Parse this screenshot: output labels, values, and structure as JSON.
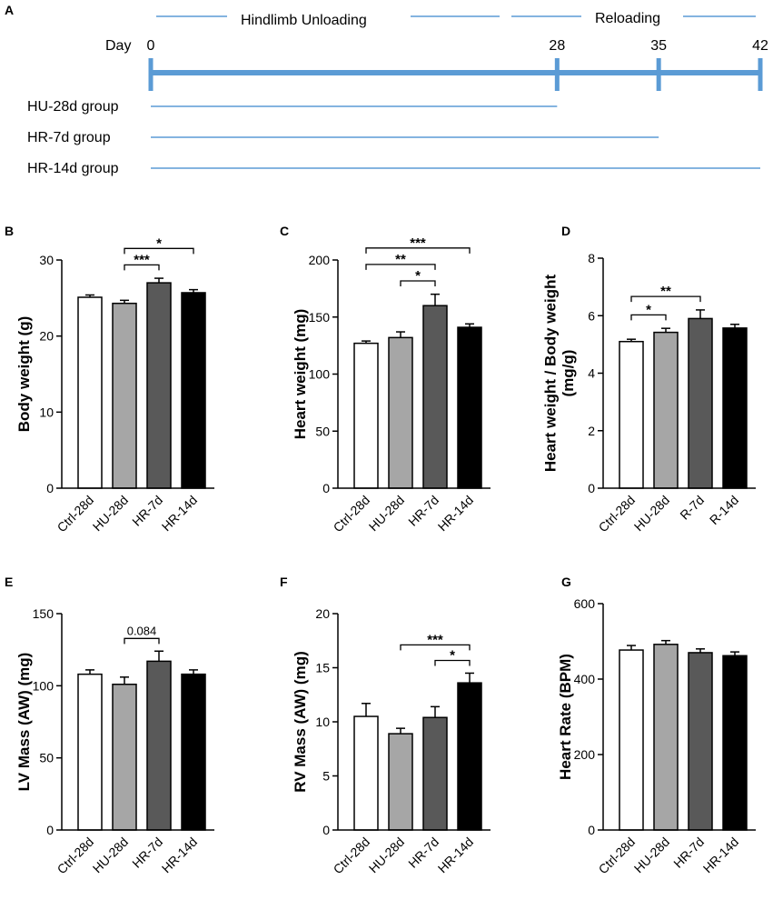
{
  "timeline": {
    "panel": "A",
    "day_label": "Day",
    "phase_unloading": "Hindlimb  Unloading",
    "phase_reloading": "Reloading",
    "days": [
      "0",
      "28",
      "35",
      "42"
    ],
    "groups": [
      {
        "name": "HU-28d group",
        "end_day": 28
      },
      {
        "name": "HR-7d group",
        "end_day": 35
      },
      {
        "name": "HR-14d group",
        "end_day": 42
      }
    ],
    "line_color": "#5b9bd5"
  },
  "colors": {
    "ctrl": "#ffffff",
    "hu": "#a6a6a6",
    "hr7": "#595959",
    "hr14": "#000000"
  },
  "chart_data": [
    {
      "panel": "B",
      "type": "bar",
      "ylabel": "Body weight (g)",
      "categories": [
        "Ctrl-28d",
        "HU-28d",
        "HR-7d",
        "HR-14d"
      ],
      "values": [
        25.1,
        24.3,
        27.0,
        25.7
      ],
      "errors": [
        0.3,
        0.4,
        0.6,
        0.4
      ],
      "ylim": [
        0,
        30
      ],
      "yticks": [
        "0",
        "10",
        "20",
        "30"
      ],
      "annotations": [
        {
          "from": 1,
          "to": 3,
          "label": "*"
        },
        {
          "from": 1,
          "to": 2,
          "label": "***"
        }
      ]
    },
    {
      "panel": "C",
      "type": "bar",
      "ylabel": "Heart weight (mg)",
      "categories": [
        "Ctrl-28d",
        "HU-28d",
        "HR-7d",
        "HR-14d"
      ],
      "values": [
        127,
        132,
        160,
        141
      ],
      "errors": [
        2,
        5,
        10,
        3
      ],
      "ylim": [
        0,
        200
      ],
      "yticks": [
        "0",
        "50",
        "100",
        "150",
        "200"
      ],
      "annotations": [
        {
          "from": 0,
          "to": 3,
          "label": "***"
        },
        {
          "from": 0,
          "to": 2,
          "label": "**"
        },
        {
          "from": 1,
          "to": 2,
          "label": "*"
        }
      ]
    },
    {
      "panel": "D",
      "type": "bar",
      "ylabel": "Heart weight / Body weight (mg/g)",
      "ylabel_lines": [
        "Heart weight / Body weight",
        "(mg/g)"
      ],
      "categories": [
        "Ctrl-28d",
        "HU-28d",
        "R-7d",
        "R-14d"
      ],
      "values": [
        5.1,
        5.42,
        5.9,
        5.57
      ],
      "errors": [
        0.08,
        0.14,
        0.3,
        0.13
      ],
      "ylim": [
        0,
        8
      ],
      "yticks": [
        "0",
        "2",
        "4",
        "6",
        "8"
      ],
      "annotations": [
        {
          "from": 0,
          "to": 2,
          "label": "**"
        },
        {
          "from": 0,
          "to": 1,
          "label": "*"
        }
      ]
    },
    {
      "panel": "E",
      "type": "bar",
      "ylabel": "LV Mass (AW) (mg)",
      "categories": [
        "Ctrl-28d",
        "HU-28d",
        "HR-7d",
        "HR-14d"
      ],
      "values": [
        108,
        101,
        117,
        108
      ],
      "errors": [
        3,
        5,
        7,
        3
      ],
      "ylim": [
        0,
        150
      ],
      "yticks": [
        "0",
        "50",
        "100",
        "150"
      ],
      "annotations": [
        {
          "from": 1,
          "to": 2,
          "label": "0.084"
        }
      ]
    },
    {
      "panel": "F",
      "type": "bar",
      "ylabel": "RV Mass (AW) (mg)",
      "categories": [
        "Ctrl-28d",
        "HU-28d",
        "HR-7d",
        "HR-14d"
      ],
      "values": [
        10.5,
        8.9,
        10.4,
        13.6
      ],
      "errors": [
        1.2,
        0.5,
        1.0,
        0.9
      ],
      "ylim": [
        0,
        20
      ],
      "yticks": [
        "0",
        "5",
        "10",
        "15",
        "20"
      ],
      "annotations": [
        {
          "from": 1,
          "to": 3,
          "label": "***"
        },
        {
          "from": 2,
          "to": 3,
          "label": "*"
        }
      ]
    },
    {
      "panel": "G",
      "type": "bar",
      "ylabel": "Heart Rate (BPM)",
      "categories": [
        "Ctrl-28d",
        "HU-28d",
        "HR-7d",
        "HR-14d"
      ],
      "values": [
        477,
        492,
        470,
        462
      ],
      "errors": [
        12,
        10,
        10,
        10
      ],
      "ylim": [
        0,
        600
      ],
      "yticks": [
        "0",
        "200",
        "400",
        "600"
      ],
      "annotations": []
    }
  ]
}
